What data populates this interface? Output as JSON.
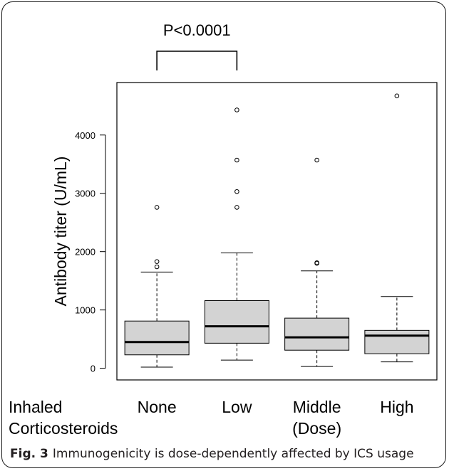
{
  "caption": {
    "label": "Fig. 3",
    "text": "Immunogenicity is dose-dependently affected by ICS usage"
  },
  "annotation": {
    "text": "P<0.0001",
    "between": [
      "None",
      "Low"
    ]
  },
  "row_label": {
    "line1": "Inhaled",
    "line2": "Corticosteroids"
  },
  "chart_data": {
    "type": "boxplot",
    "title": "",
    "ylabel": "Antibody titer (U/mL)",
    "xlabel": "",
    "categories": [
      {
        "line1": "None",
        "line2": ""
      },
      {
        "line1": "Low",
        "line2": ""
      },
      {
        "line1": "Middle",
        "line2": "(Dose)"
      },
      {
        "line1": "High",
        "line2": ""
      }
    ],
    "yticks": [
      0,
      1000,
      2000,
      3000,
      4000
    ],
    "ylim": [
      -200,
      4900
    ],
    "boxes": [
      {
        "name": "None",
        "whisker_low": 20,
        "q1": 230,
        "median": 450,
        "q3": 810,
        "whisker_high": 1650,
        "outliers": [
          1740,
          1830,
          2760
        ]
      },
      {
        "name": "Low",
        "whisker_low": 140,
        "q1": 430,
        "median": 720,
        "q3": 1160,
        "whisker_high": 1980,
        "outliers": [
          2760,
          3030,
          3570,
          4430
        ]
      },
      {
        "name": "Middle",
        "whisker_low": 30,
        "q1": 310,
        "median": 530,
        "q3": 860,
        "whisker_high": 1670,
        "outliers": [
          1800,
          1810,
          3570
        ]
      },
      {
        "name": "High",
        "whisker_low": 110,
        "q1": 250,
        "median": 560,
        "q3": 650,
        "whisker_high": 1230,
        "outliers": [
          4670
        ]
      }
    ],
    "box_color": "#d3d3d3",
    "grid": false,
    "legend": "none"
  }
}
